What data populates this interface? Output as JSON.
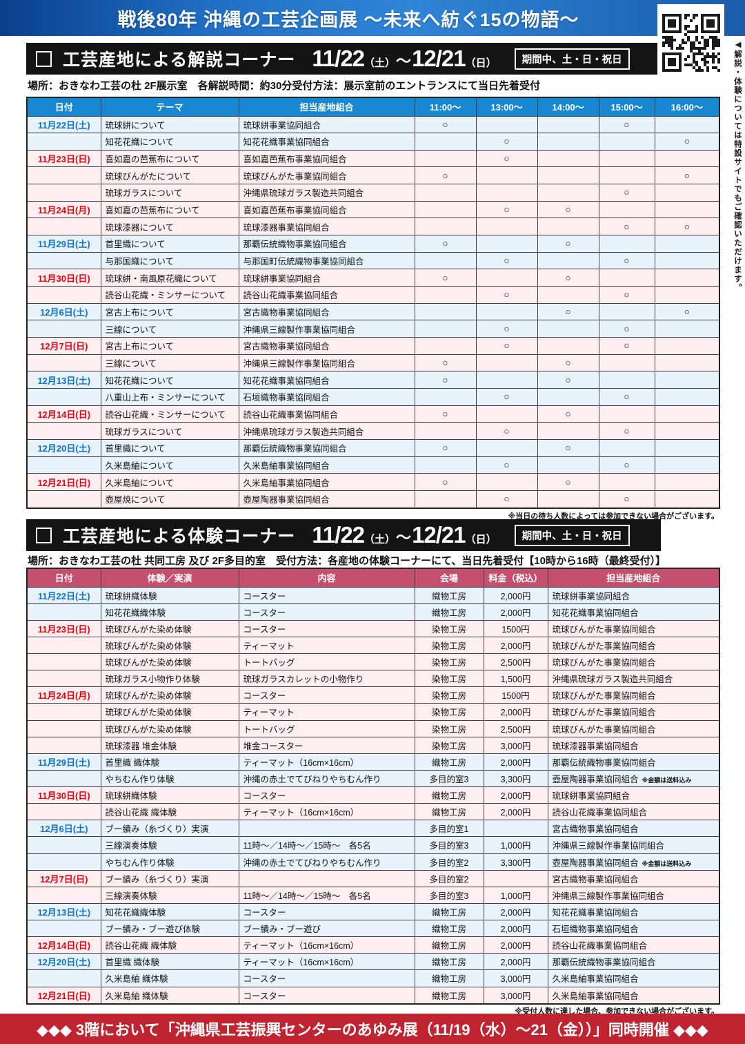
{
  "page": {
    "banner_title": "戦後80年 沖縄の工芸企画展 〜未来へ紡ぐ15の物語〜",
    "side_note": "◀解説・体験については特設サイトでもご確認いただけます。",
    "footer_text": "◆◆◆ 3階において「沖縄県工芸振興センターのあゆみ展（11/19（水）〜21（金））」同時開催 ◆◆◆",
    "colors": {
      "banner_blue": "#1f6fc4",
      "table1_header": "#1787d2",
      "table2_header": "#c4506e",
      "saturday_row": "#e7f2fb",
      "sunday_row": "#fdeef2",
      "saturday_text": "#0b72c8",
      "sunday_text": "#e8000d",
      "footer_red": "#bf2430"
    }
  },
  "section1": {
    "title": "工芸産地による解説コーナー",
    "date_start": "11/22",
    "date_start_day": "（土）",
    "tilde": "〜",
    "date_end": "12/21",
    "date_end_day": "（日）",
    "badge": "期間中、土・日・祝日",
    "subtitle": "場所：おきなわ工芸の杜 2F展示室　各解説時間：約30分受付方法：展示室前のエントランスにて当日先着受付",
    "note": "※当日の待ち人数によっては参加できない場合がございます。",
    "columns": [
      "日付",
      "テーマ",
      "担当産地組合",
      "11:00〜",
      "13:00〜",
      "14:00〜",
      "15:00〜",
      "16:00〜"
    ],
    "rows": [
      {
        "date": "11月22日(土)",
        "type": "sat",
        "theme": "琉球絣について",
        "org": "琉球絣事業協同組合",
        "slots": [
          "○",
          "",
          "",
          "○",
          ""
        ]
      },
      {
        "date": "",
        "type": "sat",
        "theme": "知花花織について",
        "org": "知花花織事業協同組合",
        "slots": [
          "",
          "○",
          "",
          "",
          "○"
        ]
      },
      {
        "date": "11月23日(日)",
        "type": "sun",
        "theme": "喜如嘉の芭蕉布について",
        "org": "喜如嘉芭蕉布事業協同組合",
        "slots": [
          "",
          "○",
          "",
          "",
          ""
        ]
      },
      {
        "date": "",
        "type": "sun",
        "theme": "琉球びんがたについて",
        "org": "琉球びんがた事業協同組合",
        "slots": [
          "○",
          "",
          "",
          "",
          "○"
        ]
      },
      {
        "date": "",
        "type": "sun",
        "theme": "琉球ガラスについて",
        "org": "沖縄県琉球ガラス製造共同組合",
        "slots": [
          "",
          "",
          "",
          "○",
          ""
        ]
      },
      {
        "date": "11月24日(月)",
        "type": "sun",
        "theme": "喜如嘉の芭蕉布について",
        "org": "喜如嘉芭蕉布事業協同組合",
        "slots": [
          "",
          "○",
          "○",
          "",
          ""
        ]
      },
      {
        "date": "",
        "type": "sun",
        "theme": "琉球漆器について",
        "org": "琉球漆器事業協同組合",
        "slots": [
          "",
          "",
          "",
          "○",
          "○"
        ]
      },
      {
        "date": "11月29日(土)",
        "type": "sat",
        "theme": "首里織について",
        "org": "那覇伝統織物事業協同組合",
        "slots": [
          "○",
          "",
          "○",
          "",
          ""
        ]
      },
      {
        "date": "",
        "type": "sat",
        "theme": "与那国織について",
        "org": "与那国町伝統織物事業協同組合",
        "slots": [
          "",
          "○",
          "",
          "○",
          ""
        ]
      },
      {
        "date": "11月30日(日)",
        "type": "sun",
        "theme": "琉球絣・南風原花織について",
        "org": "琉球絣事業協同組合",
        "slots": [
          "○",
          "",
          "○",
          "",
          ""
        ]
      },
      {
        "date": "",
        "type": "sun",
        "theme": "読谷山花織・ミンサーについて",
        "org": "読谷山花織事業協同組合",
        "slots": [
          "",
          "○",
          "",
          "○",
          ""
        ]
      },
      {
        "date": "12月6日(土)",
        "type": "sat",
        "theme": "宮古上布について",
        "org": "宮古織物事業協同組合",
        "slots": [
          "",
          "",
          "○",
          "",
          "○"
        ]
      },
      {
        "date": "",
        "type": "sat",
        "theme": "三線について",
        "org": "沖縄県三線製作事業協同組合",
        "slots": [
          "",
          "○",
          "",
          "○",
          ""
        ]
      },
      {
        "date": "12月7日(日)",
        "type": "sun",
        "theme": "宮古上布について",
        "org": "宮古織物事業協同組合",
        "slots": [
          "",
          "○",
          "",
          "○",
          ""
        ]
      },
      {
        "date": "",
        "type": "sun",
        "theme": "三線について",
        "org": "沖縄県三線製作事業協同組合",
        "slots": [
          "○",
          "",
          "○",
          "",
          ""
        ]
      },
      {
        "date": "12月13日(土)",
        "type": "sat",
        "theme": "知花花織について",
        "org": "知花花織事業協同組合",
        "slots": [
          "○",
          "",
          "○",
          "",
          ""
        ]
      },
      {
        "date": "",
        "type": "sat",
        "theme": "八重山上布・ミンサーについて",
        "org": "石垣織物事業協同組合",
        "slots": [
          "",
          "○",
          "",
          "○",
          ""
        ]
      },
      {
        "date": "12月14日(日)",
        "type": "sun",
        "theme": "読谷山花織・ミンサーについて",
        "org": "読谷山花織事業協同組合",
        "slots": [
          "○",
          "",
          "○",
          "",
          ""
        ]
      },
      {
        "date": "",
        "type": "sun",
        "theme": "琉球ガラスについて",
        "org": "沖縄県琉球ガラス製造共同組合",
        "slots": [
          "",
          "○",
          "",
          "○",
          ""
        ]
      },
      {
        "date": "12月20日(土)",
        "type": "sat",
        "theme": "首里織について",
        "org": "那覇伝統織物事業協同組合",
        "slots": [
          "○",
          "",
          "○",
          "",
          ""
        ]
      },
      {
        "date": "",
        "type": "sat",
        "theme": "久米島紬について",
        "org": "久米島紬事業協同組合",
        "slots": [
          "",
          "○",
          "",
          "○",
          ""
        ]
      },
      {
        "date": "12月21日(日)",
        "type": "sun",
        "theme": "久米島紬について",
        "org": "久米島紬事業協同組合",
        "slots": [
          "○",
          "",
          "○",
          "",
          ""
        ]
      },
      {
        "date": "",
        "type": "sun",
        "theme": "壺屋焼について",
        "org": "壺屋陶器事業協同組合",
        "slots": [
          "",
          "○",
          "",
          "○",
          ""
        ]
      }
    ]
  },
  "section2": {
    "title": "工芸産地による体験コーナー",
    "date_start": "11/22",
    "date_start_day": "（土）",
    "tilde": "〜",
    "date_end": "12/21",
    "date_end_day": "（日）",
    "badge": "期間中、土・日・祝日",
    "subtitle": "場所：おきなわ工芸の杜 共同工房 及び 2F多目的室　受付方法：各産地の体験コーナーにて、当日先着受付【10時から16時（最終受付）】",
    "note": "※受付人数に達した場合、参加できない場合がございます。",
    "columns": [
      "日付",
      "体験／実演",
      "内容",
      "会場",
      "料金（税込）",
      "担当産地組合"
    ],
    "rows": [
      {
        "date": "11月22日(土)",
        "type": "sat",
        "activity": "琉球絣織体験",
        "content": "コースター",
        "venue": "織物工房",
        "fee": "2,000円",
        "org": "琉球絣事業協同組合",
        "note": ""
      },
      {
        "date": "",
        "type": "sat",
        "activity": "知花花織織体験",
        "content": "コースター",
        "venue": "織物工房",
        "fee": "2,000円",
        "org": "知花花織事業協同組合",
        "note": ""
      },
      {
        "date": "11月23日(日)",
        "type": "sun",
        "activity": "琉球びんがた染め体験",
        "content": "コースター",
        "venue": "染物工房",
        "fee": "1500円",
        "org": "琉球びんがた事業協同組合",
        "note": ""
      },
      {
        "date": "",
        "type": "sun",
        "activity": "琉球びんがた染め体験",
        "content": "ティーマット",
        "venue": "染物工房",
        "fee": "2,000円",
        "org": "琉球びんがた事業協同組合",
        "note": ""
      },
      {
        "date": "",
        "type": "sun",
        "activity": "琉球びんがた染め体験",
        "content": "トートバッグ",
        "venue": "染物工房",
        "fee": "2,500円",
        "org": "琉球びんがた事業協同組合",
        "note": ""
      },
      {
        "date": "",
        "type": "sun",
        "activity": "琉球ガラス小物作り体験",
        "content": "琉球ガラスカレットの小物作り",
        "venue": "染物工房",
        "fee": "1,500円",
        "org": "沖縄県琉球ガラス製造共同組合",
        "note": ""
      },
      {
        "date": "11月24日(月)",
        "type": "sun",
        "activity": "琉球びんがた染め体験",
        "content": "コースター",
        "venue": "染物工房",
        "fee": "1500円",
        "org": "琉球びんがた事業協同組合",
        "note": ""
      },
      {
        "date": "",
        "type": "sun",
        "activity": "琉球びんがた染め体験",
        "content": "ティーマット",
        "venue": "染物工房",
        "fee": "2,000円",
        "org": "琉球びんがた事業協同組合",
        "note": ""
      },
      {
        "date": "",
        "type": "sun",
        "activity": "琉球びんがた染め体験",
        "content": "トートバッグ",
        "venue": "染物工房",
        "fee": "2,500円",
        "org": "琉球びんがた事業協同組合",
        "note": ""
      },
      {
        "date": "",
        "type": "sun",
        "activity": "琉球漆器 堆金体験",
        "content": "堆金コースター",
        "venue": "染物工房",
        "fee": "3,000円",
        "org": "琉球漆器事業協同組合",
        "note": ""
      },
      {
        "date": "11月29日(土)",
        "type": "sat",
        "activity": "首里織 織体験",
        "content": "ティーマット（16cm×16cm）",
        "venue": "織物工房",
        "fee": "2,000円",
        "org": "那覇伝統織物事業協同組合",
        "note": ""
      },
      {
        "date": "",
        "type": "sat",
        "activity": "やちむん作り体験",
        "content": "沖縄の赤土でてびねりやちむん作り",
        "venue": "多目的室3",
        "fee": "3,300円",
        "org": "壺屋陶器事業協同組合",
        "note": "※金額は送料込み"
      },
      {
        "date": "11月30日(日)",
        "type": "sun",
        "activity": "琉球絣織体験",
        "content": "コースター",
        "venue": "織物工房",
        "fee": "2,000円",
        "org": "琉球絣事業協同組合",
        "note": ""
      },
      {
        "date": "",
        "type": "sun",
        "activity": "読谷山花織 織体験",
        "content": "ティーマット（16cm×16cm）",
        "venue": "織物工房",
        "fee": "2,000円",
        "org": "読谷山花織事業協同組合",
        "note": ""
      },
      {
        "date": "12月6日(土)",
        "type": "sat",
        "activity": "ブー績み（糸づくり）実演",
        "content": "",
        "venue": "多目的室1",
        "fee": "",
        "org": "宮古織物事業協同組合",
        "note": ""
      },
      {
        "date": "",
        "type": "sat",
        "activity": "三線演奏体験",
        "content": "11時〜／14時〜／15時〜　各5名",
        "venue": "多目的室3",
        "fee": "1,000円",
        "org": "沖縄県三線製作事業協同組合",
        "note": ""
      },
      {
        "date": "",
        "type": "sat",
        "activity": "やちむん作り体験",
        "content": "沖縄の赤土でてびねりやちむん作り",
        "venue": "多目的室2",
        "fee": "3,300円",
        "org": "壺屋陶器事業協同組合",
        "note": "※金額は送料込み"
      },
      {
        "date": "12月7日(日)",
        "type": "sun",
        "activity": "ブー績み（糸づくり）実演",
        "content": "",
        "venue": "多目的室2",
        "fee": "",
        "org": "宮古織物事業協同組合",
        "note": ""
      },
      {
        "date": "",
        "type": "sun",
        "activity": "三線演奏体験",
        "content": "11時〜／14時〜／15時〜　各5名",
        "venue": "多目的室3",
        "fee": "1,000円",
        "org": "沖縄県三線製作事業協同組合",
        "note": ""
      },
      {
        "date": "12月13日(土)",
        "type": "sat",
        "activity": "知花花織織体験",
        "content": "コースター",
        "venue": "織物工房",
        "fee": "2,000円",
        "org": "知花花織事業協同組合",
        "note": ""
      },
      {
        "date": "",
        "type": "sat",
        "activity": "ブー績み・ブー遊び体験",
        "content": "ブー績み・ブー遊び",
        "venue": "織物工房",
        "fee": "2,000円",
        "org": "石垣織物事業協同組合",
        "note": ""
      },
      {
        "date": "12月14日(日)",
        "type": "sun",
        "activity": "読谷山花織 織体験",
        "content": "ティーマット（16cm×16cm）",
        "venue": "織物工房",
        "fee": "2,000円",
        "org": "読谷山花織事業協同組合",
        "note": ""
      },
      {
        "date": "12月20日(土)",
        "type": "sat",
        "activity": "首里織 織体験",
        "content": "ティーマット（16cm×16cm）",
        "venue": "織物工房",
        "fee": "2,000円",
        "org": "那覇伝統織物事業協同組合",
        "note": ""
      },
      {
        "date": "",
        "type": "sat",
        "activity": "久米島紬 織体験",
        "content": "コースター",
        "venue": "織物工房",
        "fee": "3,000円",
        "org": "久米島紬事業協同組合",
        "note": ""
      },
      {
        "date": "12月21日(日)",
        "type": "sun",
        "activity": "久米島紬 織体験",
        "content": "コースター",
        "venue": "織物工房",
        "fee": "3,000円",
        "org": "久米島紬事業協同組合",
        "note": ""
      }
    ]
  }
}
